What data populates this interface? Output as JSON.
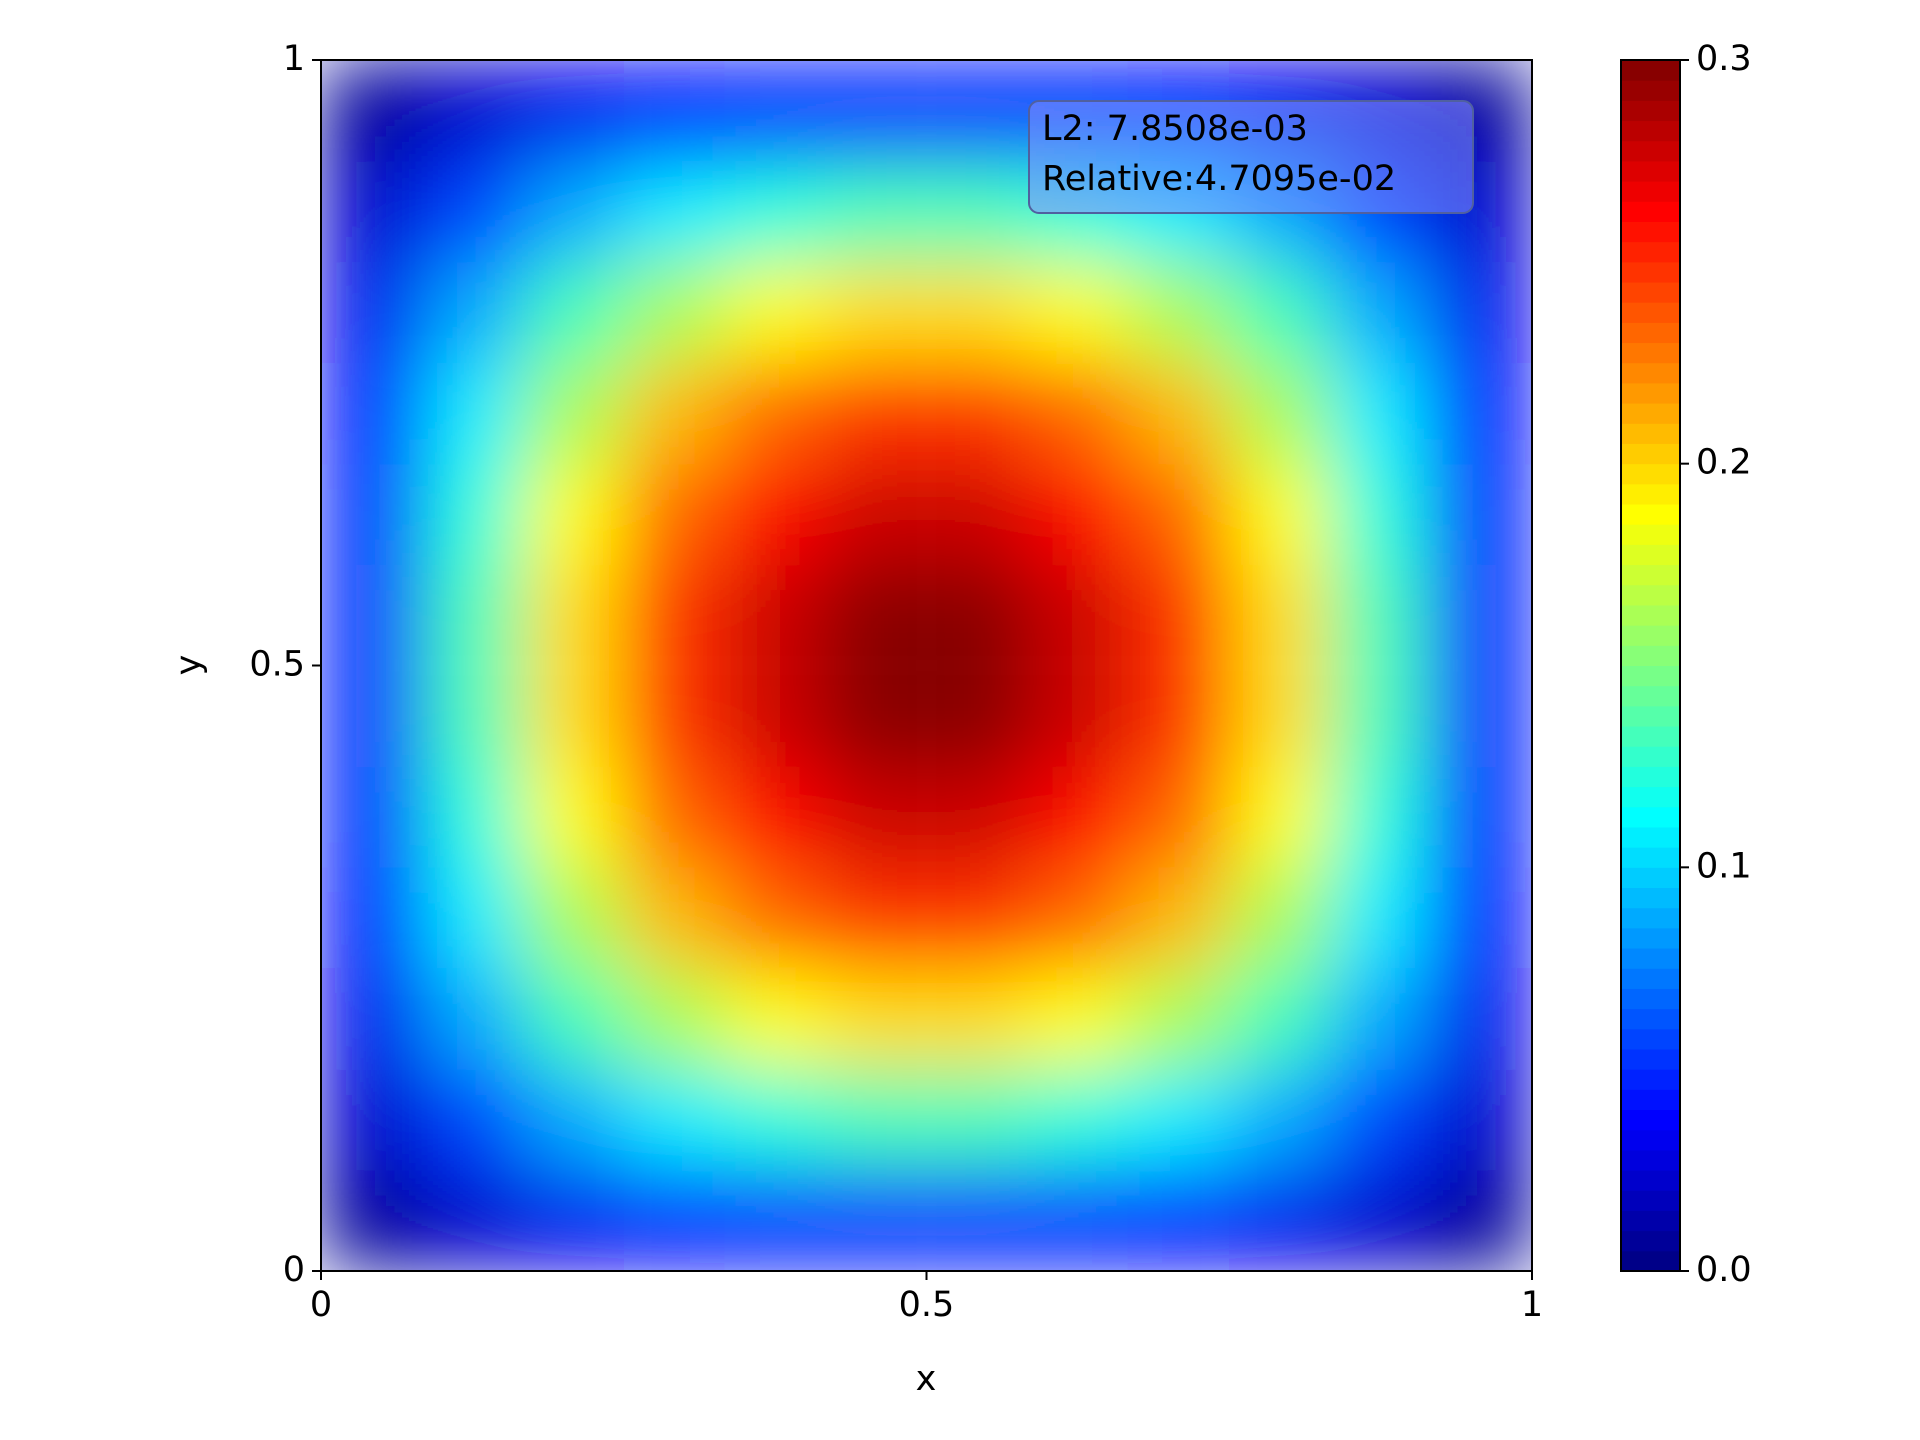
{
  "chart_data": {
    "type": "contour",
    "colormap": "jet",
    "levels": 60,
    "x": [
      0.042,
      0.125,
      0.208,
      0.292,
      0.375,
      0.458,
      0.542,
      0.625,
      0.708,
      0.792,
      0.875,
      0.958
    ],
    "y": [
      0.042,
      0.125,
      0.208,
      0.292,
      0.375,
      0.458,
      0.542,
      0.625,
      0.708,
      0.792,
      0.875,
      0.958
    ],
    "z": [
      [
        0.008,
        0.021,
        0.032,
        0.04,
        0.045,
        0.048,
        0.048,
        0.045,
        0.04,
        0.032,
        0.021,
        0.008
      ],
      [
        0.021,
        0.057,
        0.087,
        0.109,
        0.123,
        0.13,
        0.13,
        0.123,
        0.109,
        0.087,
        0.057,
        0.021
      ],
      [
        0.032,
        0.087,
        0.131,
        0.164,
        0.186,
        0.197,
        0.197,
        0.186,
        0.164,
        0.131,
        0.087,
        0.032
      ],
      [
        0.04,
        0.109,
        0.164,
        0.205,
        0.232,
        0.246,
        0.246,
        0.232,
        0.205,
        0.164,
        0.109,
        0.04
      ],
      [
        0.045,
        0.123,
        0.186,
        0.232,
        0.264,
        0.279,
        0.279,
        0.264,
        0.232,
        0.186,
        0.123,
        0.045
      ],
      [
        0.048,
        0.13,
        0.197,
        0.246,
        0.279,
        0.296,
        0.296,
        0.279,
        0.246,
        0.197,
        0.13,
        0.048
      ],
      [
        0.048,
        0.13,
        0.197,
        0.246,
        0.279,
        0.296,
        0.296,
        0.279,
        0.246,
        0.197,
        0.13,
        0.048
      ],
      [
        0.045,
        0.123,
        0.186,
        0.232,
        0.264,
        0.279,
        0.279,
        0.264,
        0.232,
        0.186,
        0.123,
        0.045
      ],
      [
        0.04,
        0.109,
        0.164,
        0.205,
        0.232,
        0.246,
        0.246,
        0.232,
        0.205,
        0.164,
        0.109,
        0.04
      ],
      [
        0.032,
        0.087,
        0.131,
        0.164,
        0.186,
        0.197,
        0.197,
        0.186,
        0.164,
        0.131,
        0.087,
        0.032
      ],
      [
        0.021,
        0.057,
        0.087,
        0.109,
        0.123,
        0.13,
        0.13,
        0.123,
        0.109,
        0.087,
        0.057,
        0.021
      ],
      [
        0.008,
        0.021,
        0.032,
        0.04,
        0.045,
        0.048,
        0.048,
        0.045,
        0.04,
        0.032,
        0.021,
        0.008
      ]
    ],
    "xlim": [
      0,
      1
    ],
    "ylim": [
      0,
      1
    ],
    "xticks": [
      0,
      0.5,
      1
    ],
    "yticks": [
      0,
      0.5,
      1
    ],
    "xlabel": "x",
    "ylabel": "y",
    "zlim": [
      0,
      0.3
    ],
    "zticks": [
      {
        "value": 0,
        "label": "0.0"
      },
      0.1,
      0.2,
      0.3
    ],
    "annotations": [
      "L2: 7.8508e-03",
      "Relative:4.7095e-02"
    ]
  }
}
